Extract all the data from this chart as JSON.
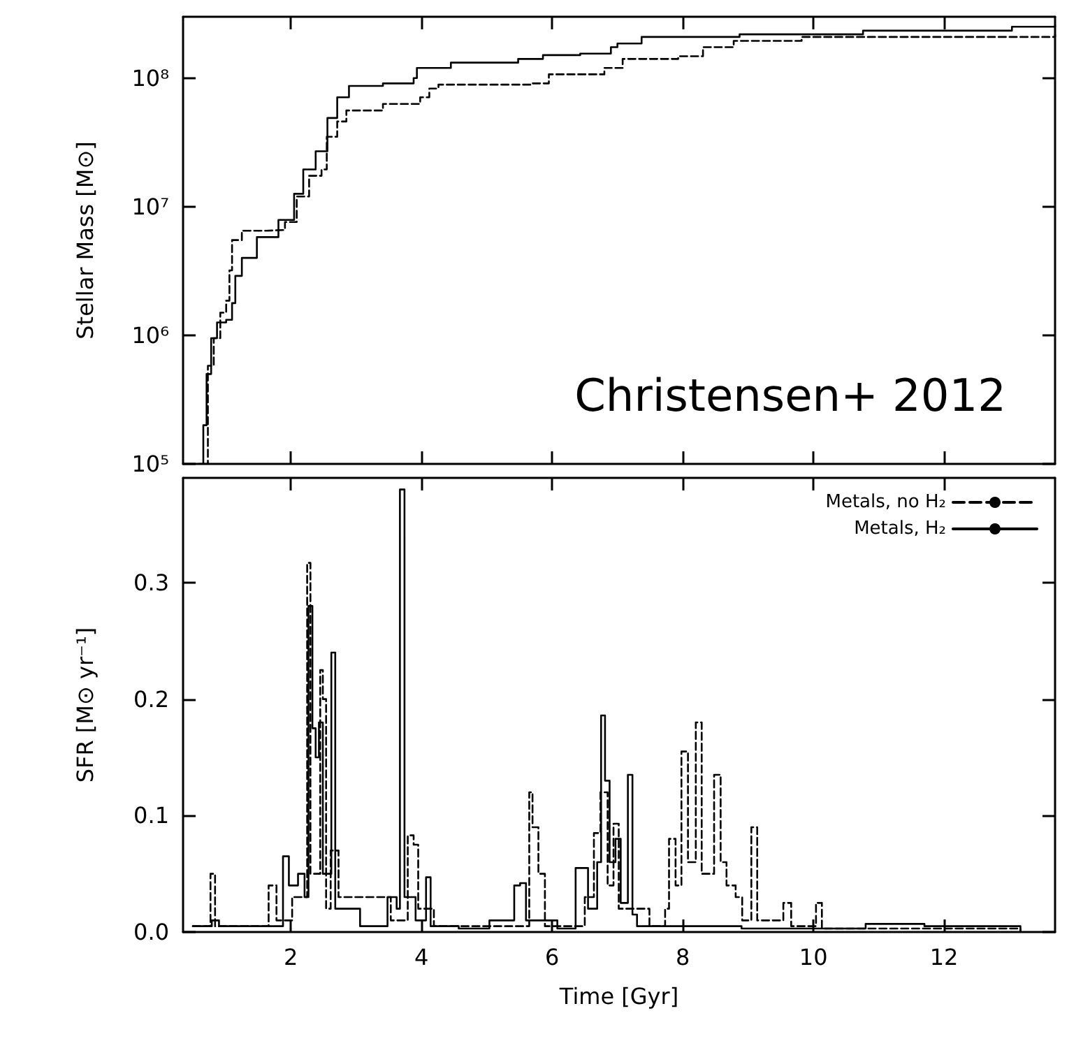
{
  "chart_data": [
    {
      "type": "step",
      "ylabel": "Stellar Mass [M⊙]",
      "log": "y",
      "xlim": [
        0.35,
        13.7
      ],
      "xticks": [
        2,
        4,
        6,
        8,
        10,
        12
      ],
      "ylim": [
        100000,
        300000000
      ],
      "yticks": [
        {
          "value": 100000,
          "label": "10⁵"
        },
        {
          "value": 1000000,
          "label": "10⁶"
        },
        {
          "value": 10000000,
          "label": "10⁷"
        },
        {
          "value": 100000000,
          "label": "10⁸"
        }
      ],
      "tick_labels": "y",
      "marker": "none",
      "legend": false,
      "annotations": [
        "Christensen+ 2012"
      ],
      "series": [
        {
          "color": "#000000",
          "line_style": "dashed",
          "x": [
            0.67,
            0.73,
            0.82,
            0.92,
            1.01,
            1.06,
            1.1,
            1.25,
            1.62,
            1.91,
            2.09,
            2.28,
            2.47,
            2.55,
            2.71,
            2.85,
            3.41,
            3.98,
            4.12,
            4.26,
            5.67,
            5.95,
            6.8,
            7.08,
            7.93,
            8.31,
            8.78,
            9.82,
            13.7
          ],
          "values": [
            100000,
            580000,
            950000,
            1500000,
            1860000,
            3200000,
            5500000,
            6500000,
            6600000,
            7600000,
            12000000,
            17400000,
            19500000,
            35000000,
            46000000,
            56000000,
            63000000,
            71000000,
            83000000,
            89000000,
            91000000,
            107000000,
            120000000,
            141000000,
            148000000,
            174000000,
            195000000,
            209000000,
            219000000
          ]
        },
        {
          "color": "#000000",
          "line_style": "solid",
          "x": [
            0.59,
            0.66,
            0.71,
            0.78,
            0.87,
            1.01,
            1.1,
            1.15,
            1.25,
            1.48,
            1.81,
            2.05,
            2.19,
            2.38,
            2.56,
            2.71,
            2.89,
            3.41,
            3.88,
            3.93,
            4.45,
            5.48,
            5.86,
            6.43,
            6.9,
            7.0,
            7.37,
            8.87,
            10.76,
            13.04,
            13.7
          ],
          "values": [
            100000,
            200000,
            500000,
            950000,
            1260000,
            1320000,
            1780000,
            2900000,
            4000000,
            5800000,
            7900000,
            12600000,
            19500000,
            27000000,
            49000000,
            71000000,
            87000000,
            91000000,
            100000000,
            120000000,
            132000000,
            141000000,
            151000000,
            155000000,
            174000000,
            186000000,
            209000000,
            219000000,
            234000000,
            251000000,
            257000000
          ]
        }
      ]
    },
    {
      "type": "step",
      "xlabel": "Time [Gyr]",
      "ylabel": "SFR [M⊙ yr⁻¹]",
      "xlim": [
        0.35,
        13.7
      ],
      "xticks": [
        2,
        4,
        6,
        8,
        10,
        12
      ],
      "ylim": [
        0,
        0.39
      ],
      "yticks": [
        {
          "value": 0,
          "label": "0.0"
        },
        {
          "value": 0.1,
          "label": "0.1"
        },
        {
          "value": 0.2,
          "label": "0.2"
        },
        {
          "value": 0.3,
          "label": "0.3"
        }
      ],
      "marker": "none",
      "legend": "top right",
      "series": [
        {
          "name": "Metals, no H₂",
          "color": "#000000",
          "line_style": "dashed",
          "x": [
            0.5,
            0.77,
            0.84,
            1.66,
            1.78,
            2.02,
            2.25,
            2.3,
            2.45,
            2.49,
            2.54,
            2.61,
            2.73,
            3.25,
            3.53,
            3.79,
            3.88,
            3.95,
            4.19,
            4.75,
            5.23,
            5.65,
            5.7,
            5.79,
            5.89,
            6.5,
            6.64,
            6.74,
            6.85,
            6.94,
            7.02,
            7.49,
            7.73,
            7.79,
            7.89,
            7.98,
            8.08,
            8.2,
            8.29,
            8.48,
            8.58,
            8.67,
            8.81,
            8.91,
            9.05,
            9.14,
            9.54,
            9.66,
            10.04,
            10.13,
            13.17
          ],
          "values": [
            0.005,
            0.05,
            0.005,
            0.04,
            0.01,
            0.03,
            0.317,
            0.05,
            0.225,
            0.2,
            0.02,
            0.07,
            0.03,
            0.03,
            0.01,
            0.083,
            0.075,
            0.02,
            0.005,
            0.005,
            0.005,
            0.12,
            0.09,
            0.05,
            0.005,
            0.03,
            0.085,
            0.12,
            0.04,
            0.093,
            0.02,
            0.005,
            0.02,
            0.08,
            0.04,
            0.155,
            0.06,
            0.18,
            0.05,
            0.135,
            0.06,
            0.04,
            0.03,
            0.01,
            0.09,
            0.01,
            0.025,
            0.005,
            0.025,
            0.003,
            0
          ]
        },
        {
          "name": "Metals, H₂",
          "color": "#000000",
          "line_style": "solid",
          "x": [
            0.5,
            0.79,
            0.9,
            1.64,
            1.88,
            1.97,
            2.11,
            2.21,
            2.27,
            2.33,
            2.38,
            2.43,
            2.49,
            2.62,
            2.68,
            3.06,
            3.48,
            3.62,
            3.67,
            3.74,
            3.91,
            4.07,
            4.14,
            4.57,
            5.04,
            5.42,
            5.51,
            5.6,
            6.08,
            6.36,
            6.55,
            6.69,
            6.75,
            6.81,
            6.88,
            6.97,
            7.05,
            7.16,
            7.23,
            7.3,
            8.9,
            10.8,
            11.7,
            13.06,
            13.17
          ],
          "values": [
            0.005,
            0.01,
            0.005,
            0.005,
            0.065,
            0.04,
            0.05,
            0.03,
            0.28,
            0.175,
            0.15,
            0.18,
            0.05,
            0.24,
            0.02,
            0.005,
            0.03,
            0.02,
            0.38,
            0.03,
            0.01,
            0.047,
            0.005,
            0.003,
            0.01,
            0.04,
            0.042,
            0.01,
            0.003,
            0.055,
            0.02,
            0.06,
            0.186,
            0.13,
            0.06,
            0.08,
            0.025,
            0.135,
            0.015,
            0.005,
            0.003,
            0.007,
            0.005,
            0.005,
            0
          ]
        }
      ]
    }
  ]
}
